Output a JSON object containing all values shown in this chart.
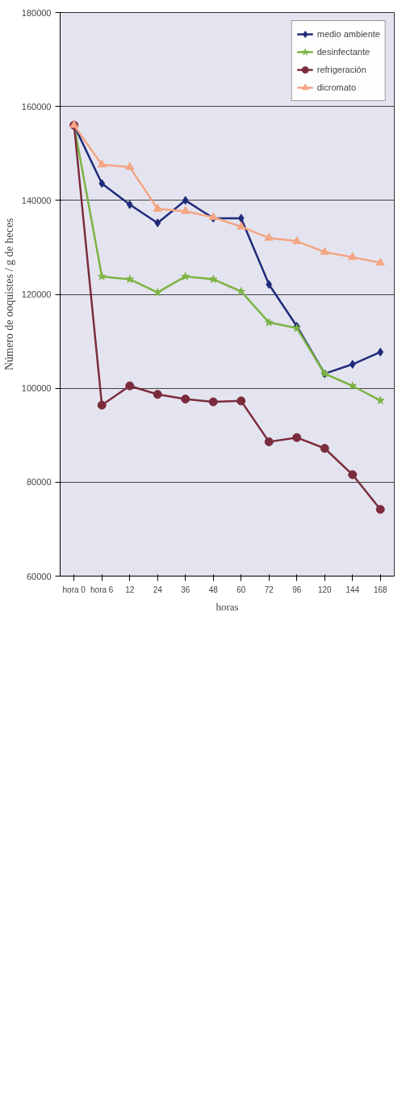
{
  "chart_data": {
    "type": "line",
    "xlabel": "horas",
    "ylabel": "Número de ooquistes / g de heces",
    "categories": [
      "hora 0",
      "hora 6",
      "12",
      "24",
      "36",
      "48",
      "60",
      "72",
      "96",
      "120",
      "144",
      "168"
    ],
    "series": [
      {
        "name": "medio ambiente",
        "color": "#1f2a7a",
        "marker": "diamond",
        "values": [
          156000,
          143600,
          139100,
          135200,
          140000,
          136200,
          136200,
          122100,
          113200,
          103100,
          105100,
          107700
        ]
      },
      {
        "name": "desinfectante",
        "color": "#7cb342",
        "marker": "star",
        "values": [
          156000,
          123800,
          123200,
          120400,
          123800,
          123200,
          120600,
          114000,
          112800,
          103100,
          100500,
          97400
        ]
      },
      {
        "name": "refrigeración",
        "color": "#7b2c3c",
        "marker": "circle",
        "values": [
          156000,
          96400,
          100500,
          98700,
          97700,
          97100,
          97300,
          88600,
          89500,
          87200,
          81600,
          74200
        ]
      },
      {
        "name": "dicromato",
        "color": "#f4a582",
        "marker": "triangle",
        "values": [
          156000,
          147600,
          147100,
          138200,
          137700,
          136400,
          134400,
          132000,
          131300,
          129000,
          127900,
          126700
        ]
      }
    ],
    "ylim": [
      60000,
      180000
    ],
    "yticks": [
      60000,
      80000,
      100000,
      120000,
      140000,
      160000,
      180000
    ],
    "grid": "y",
    "legend": "top right"
  }
}
